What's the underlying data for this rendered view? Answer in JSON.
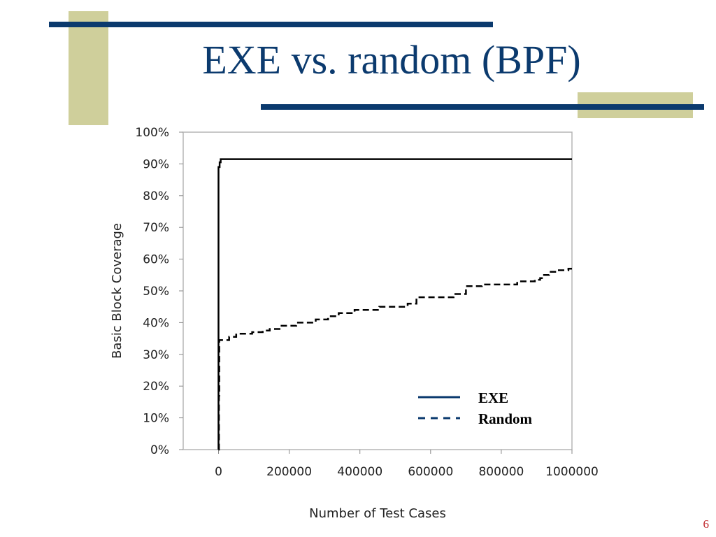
{
  "slide": {
    "title": "EXE vs. random (BPF)",
    "page_number": "6"
  },
  "colors": {
    "accent_tan": "#cfcf9b",
    "accent_navy": "#0b3a6e",
    "title": "#0b3a6e",
    "page_number": "#c0282d"
  },
  "chart_data": {
    "type": "line",
    "title": "",
    "xlabel": "Number of Test Cases",
    "ylabel": "Basic Block Coverage",
    "xlim": [
      -100000,
      1000000
    ],
    "ylim": [
      0,
      100
    ],
    "x_ticks": [
      0,
      200000,
      400000,
      600000,
      800000,
      1000000
    ],
    "x_tick_labels": [
      "0",
      "200000",
      "400000",
      "600000",
      "800000",
      "1000000"
    ],
    "y_ticks": [
      0,
      10,
      20,
      30,
      40,
      50,
      60,
      70,
      80,
      90,
      100
    ],
    "y_tick_labels": [
      "0%",
      "10%",
      "20%",
      "30%",
      "40%",
      "50%",
      "60%",
      "70%",
      "80%",
      "90%",
      "100%"
    ],
    "grid": false,
    "legend_position": "bottom-right",
    "series": [
      {
        "name": "EXE",
        "style": "solid",
        "x": [
          0,
          0,
          3000,
          6000,
          1000000
        ],
        "y": [
          0,
          89,
          90.5,
          91.5,
          91.5
        ]
      },
      {
        "name": "Random",
        "style": "dashed",
        "x": [
          0,
          1000,
          2000,
          15000,
          30000,
          50000,
          95000,
          125000,
          145000,
          175000,
          220000,
          275000,
          310000,
          340000,
          385000,
          455000,
          535000,
          560000,
          600000,
          640000,
          665000,
          700000,
          745000,
          815000,
          845000,
          880000,
          895000,
          910000,
          915000,
          935000,
          960000,
          990000,
          1000000
        ],
        "y": [
          0,
          17,
          34.5,
          34.5,
          35.5,
          36.5,
          37,
          37.5,
          38,
          39,
          40,
          41,
          42,
          43,
          44,
          45,
          46,
          48,
          48,
          48,
          49,
          51.5,
          52,
          52,
          53,
          53,
          53.5,
          54,
          55,
          56,
          56.5,
          57,
          57
        ]
      }
    ]
  }
}
